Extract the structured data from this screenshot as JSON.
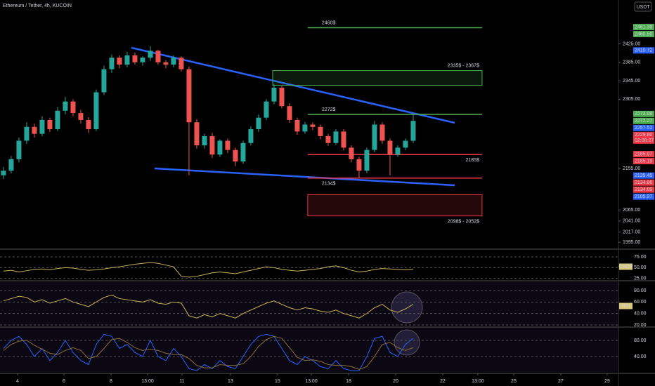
{
  "chart_data": [
    {
      "type": "candlestick",
      "title": "Ethereum / Tether, 4h, KUCOIN",
      "currency": "USDT",
      "up_color": "#26a69a",
      "down_color": "#ef5350",
      "open": [
        2140,
        2150,
        2175,
        2215,
        2245,
        2230,
        2260,
        2240,
        2280,
        2300,
        2275,
        2260,
        2240,
        2320,
        2370,
        2395,
        2380,
        2400,
        2385,
        2395,
        2410,
        2385,
        2380,
        2395,
        2370,
        2255,
        2205,
        2225,
        2185,
        2215,
        2195,
        2170,
        2210,
        2240,
        2265,
        2300,
        2330,
        2290,
        2260,
        2235,
        2250,
        2245,
        2225,
        2210,
        2235,
        2200,
        2175,
        2150,
        2195,
        2250,
        2215,
        2185,
        2200,
        2215
      ],
      "high": [
        2158,
        2182,
        2222,
        2255,
        2252,
        2268,
        2265,
        2288,
        2310,
        2305,
        2282,
        2266,
        2326,
        2378,
        2402,
        2400,
        2408,
        2406,
        2398,
        2420,
        2412,
        2390,
        2400,
        2398,
        2376,
        2262,
        2230,
        2232,
        2218,
        2220,
        2200,
        2215,
        2246,
        2272,
        2305,
        2338,
        2334,
        2296,
        2265,
        2256,
        2255,
        2250,
        2230,
        2240,
        2240,
        2205,
        2180,
        2200,
        2258,
        2255,
        2220,
        2205,
        2220,
        2272
      ],
      "low": [
        2132,
        2144,
        2168,
        2208,
        2222,
        2225,
        2234,
        2236,
        2272,
        2268,
        2252,
        2232,
        2236,
        2314,
        2362,
        2372,
        2374,
        2380,
        2378,
        2388,
        2380,
        2372,
        2374,
        2365,
        2140,
        2198,
        2198,
        2178,
        2180,
        2188,
        2160,
        2165,
        2205,
        2234,
        2260,
        2294,
        2285,
        2254,
        2228,
        2230,
        2238,
        2218,
        2204,
        2206,
        2194,
        2168,
        2134,
        2145,
        2190,
        2208,
        2140,
        2180,
        2195,
        2210
      ],
      "close": [
        2150,
        2175,
        2215,
        2245,
        2230,
        2260,
        2240,
        2280,
        2300,
        2275,
        2260,
        2240,
        2320,
        2370,
        2395,
        2380,
        2400,
        2385,
        2395,
        2410,
        2385,
        2380,
        2395,
        2370,
        2255,
        2205,
        2225,
        2185,
        2215,
        2195,
        2170,
        2210,
        2240,
        2265,
        2300,
        2330,
        2290,
        2260,
        2235,
        2250,
        2245,
        2225,
        2210,
        2235,
        2200,
        2175,
        2150,
        2195,
        2250,
        2215,
        2185,
        2200,
        2215,
        2258
      ],
      "xlim": [
        -0.45,
        79.55
      ],
      "ylim": [
        1980,
        2520
      ],
      "xticks": [
        {
          "value": 1.82,
          "label": "4"
        },
        {
          "value": 7.82,
          "label": "6"
        },
        {
          "value": 13.91,
          "label": "8"
        },
        {
          "value": 18.64,
          "label": "13:00"
        },
        {
          "value": 23.09,
          "label": "11"
        },
        {
          "value": 29.36,
          "label": "13"
        },
        {
          "value": 35.45,
          "label": "15"
        },
        {
          "value": 39.82,
          "label": "13:00"
        },
        {
          "value": 44.64,
          "label": "18"
        },
        {
          "value": 50.73,
          "label": "20"
        },
        {
          "value": 56.82,
          "label": "22"
        },
        {
          "value": 61.36,
          "label": "13:00"
        },
        {
          "value": 66.0,
          "label": "25"
        },
        {
          "value": 72.09,
          "label": "27"
        },
        {
          "value": 78.09,
          "label": "29"
        }
      ],
      "yticks": [
        {
          "value": 2425,
          "label": "2425.00"
        },
        {
          "value": 2385,
          "label": "2385.00"
        },
        {
          "value": 2345,
          "label": "2345.00"
        },
        {
          "value": 2305,
          "label": "2305.00"
        },
        {
          "value": 2155,
          "label": "2155.00"
        },
        {
          "value": 2065,
          "label": "2065.00"
        },
        {
          "value": 2041,
          "label": "2041.00"
        },
        {
          "value": 2017,
          "label": "2017.00"
        },
        {
          "value": 1995,
          "label": "1995.00"
        }
      ],
      "levels": [
        {
          "label": "2460$",
          "value": 2460,
          "color": "#4caf50",
          "x": [
            39.36,
            61.91
          ]
        },
        {
          "label": "2335$ - 2367$",
          "low": 2335,
          "high": 2367,
          "color": "#4caf50",
          "x": [
            34.82,
            61.91
          ]
        },
        {
          "label": "2272$",
          "value": 2272,
          "color": "#4caf50",
          "x": [
            39.36,
            61.91
          ]
        },
        {
          "label": "2185$",
          "value": 2185,
          "color": "#f23645",
          "x": [
            39.36,
            61.91
          ]
        },
        {
          "label": "2134$",
          "value": 2134,
          "color": "#f23645",
          "x": [
            39.36,
            61.91
          ]
        },
        {
          "label": "2098$ - 2052$",
          "low": 2052,
          "high": 2098,
          "color": "#f23645",
          "x": [
            39.36,
            61.91
          ]
        }
      ],
      "price_tags": [
        {
          "value": 2461.38,
          "label": "2461.38",
          "color": "#4caf50"
        },
        {
          "value": 2460.5,
          "label": "2460.50",
          "color": "#4caf50"
        },
        {
          "value": 2410.72,
          "label": "2410.72",
          "color": "#2962ff"
        },
        {
          "value": 2273.08,
          "label": "2273.08",
          "color": "#4caf50"
        },
        {
          "value": 2272.27,
          "label": "2272.27",
          "color": "#4caf50"
        },
        {
          "value": 2257.51,
          "label": "2257.51",
          "color": "#2962ff"
        },
        {
          "value": 2229.8,
          "label": "2229.80",
          "color": "#f23645",
          "sub": "02:08:27"
        },
        {
          "value": 2185.97,
          "label": "2185.97",
          "color": "#f23645"
        },
        {
          "value": 2185.19,
          "label": "2185.19",
          "color": "#f23645"
        },
        {
          "value": 2139.45,
          "label": "2139.45",
          "color": "#2962ff"
        },
        {
          "value": 2134.86,
          "label": "2134.86",
          "color": "#f23645"
        },
        {
          "value": 2134.09,
          "label": "2134.09",
          "color": "#f23645"
        },
        {
          "value": 2105.97,
          "label": "2105.97",
          "color": "#2962ff"
        }
      ]
    },
    {
      "type": "line",
      "ylim": [
        23,
        88
      ],
      "yticks": [
        {
          "value": 75,
          "label": "75.00"
        },
        {
          "value": 50,
          "label": "50.00"
        },
        {
          "value": 25,
          "label": "25.00"
        }
      ],
      "series": [
        {
          "name": "CHOP",
          "color": "#c9b458",
          "values": [
            42,
            44,
            40,
            43,
            46,
            47,
            45,
            48,
            50,
            49,
            46,
            44,
            45,
            47,
            50,
            52,
            55,
            58,
            60,
            62,
            60,
            56,
            52,
            30,
            28,
            30,
            34,
            38,
            40,
            38,
            36,
            40,
            44,
            48,
            52,
            50,
            46,
            44,
            42,
            44,
            46,
            48,
            52,
            54,
            50,
            44,
            40,
            42,
            46,
            48,
            47,
            46,
            45,
            46
          ]
        }
      ]
    },
    {
      "type": "line",
      "ylim": [
        17.5,
        93.5
      ],
      "yticks": [
        {
          "value": 80,
          "label": "80.00"
        },
        {
          "value": 60,
          "label": "60.00"
        },
        {
          "value": 40,
          "label": "40.00"
        },
        {
          "value": 20,
          "label": "20.00"
        }
      ],
      "series": [
        {
          "name": "RSI",
          "color": "#c9b458",
          "values": [
            62,
            66,
            70,
            68,
            60,
            64,
            58,
            62,
            66,
            60,
            56,
            52,
            60,
            68,
            72,
            66,
            64,
            62,
            60,
            64,
            58,
            56,
            60,
            58,
            36,
            32,
            38,
            34,
            40,
            36,
            32,
            40,
            46,
            52,
            58,
            62,
            56,
            50,
            46,
            50,
            48,
            44,
            42,
            46,
            40,
            36,
            32,
            40,
            50,
            56,
            46,
            42,
            48,
            56
          ]
        }
      ]
    },
    {
      "type": "line",
      "ylim": [
        1.7,
        109.6
      ],
      "yticks": [
        {
          "value": 80,
          "label": "80.00"
        },
        {
          "value": 40,
          "label": "40.00"
        }
      ],
      "series": [
        {
          "color": "#2962ff",
          "values": [
            60,
            80,
            90,
            70,
            40,
            60,
            30,
            50,
            80,
            50,
            30,
            20,
            70,
            95,
            90,
            60,
            70,
            50,
            40,
            80,
            40,
            30,
            60,
            40,
            10,
            5,
            20,
            10,
            30,
            15,
            10,
            40,
            70,
            90,
            95,
            90,
            60,
            30,
            20,
            40,
            30,
            15,
            10,
            30,
            10,
            5,
            5,
            40,
            85,
            90,
            50,
            40,
            70,
            85
          ]
        },
        {
          "color": "#8a6d3b",
          "values": [
            55,
            70,
            78,
            80,
            68,
            58,
            48,
            45,
            55,
            62,
            55,
            35,
            40,
            60,
            82,
            85,
            75,
            62,
            55,
            58,
            55,
            48,
            45,
            45,
            35,
            18,
            12,
            12,
            20,
            18,
            18,
            22,
            40,
            65,
            82,
            90,
            85,
            62,
            38,
            30,
            32,
            28,
            20,
            18,
            18,
            15,
            8,
            15,
            40,
            70,
            75,
            62,
            55,
            62
          ]
        }
      ]
    }
  ]
}
